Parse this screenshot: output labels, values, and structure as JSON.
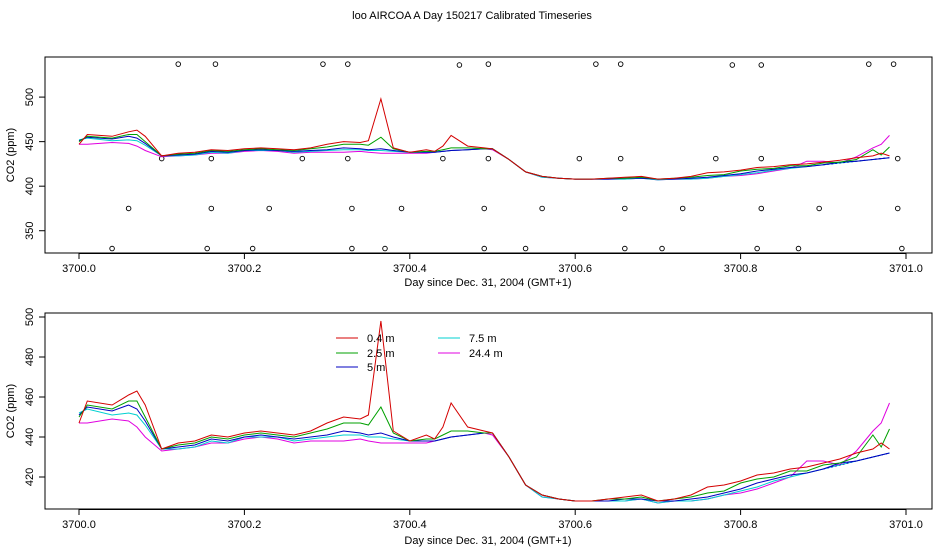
{
  "title": "loo AIRCOA A  Day 150217  Calibrated Timeseries",
  "colors": {
    "0.4 m": "#d40000",
    "2.5 m": "#00a000",
    "5 m": "#0000c0",
    "7.5 m": "#00d0d0",
    "24.4 m": "#e000e0"
  },
  "chart_data": [
    {
      "type": "line",
      "xlabel": "Day since Dec. 31, 2004 (GMT+1)",
      "ylabel": "CO2 (ppm)",
      "xlim": [
        3699.965,
        3701.025
      ],
      "ylim": [
        325,
        545
      ],
      "xticks": [
        3700.0,
        3700.2,
        3700.4,
        3700.6,
        3700.8,
        3701.0
      ],
      "xtick_labels": [
        "3700.0",
        "3700.2",
        "3700.4",
        "3700.6",
        "3700.8",
        "3701.0"
      ],
      "yticks": [
        350,
        400,
        450,
        500
      ],
      "ytick_labels": [
        "350",
        "400",
        "450",
        "500"
      ],
      "legend": "none",
      "grid": false,
      "flag_points": [
        [
          3700.04,
          330
        ],
        [
          3700.06,
          375
        ],
        [
          3700.1,
          431
        ],
        [
          3700.12,
          537
        ],
        [
          3700.155,
          330
        ],
        [
          3700.16,
          375
        ],
        [
          3700.16,
          431
        ],
        [
          3700.165,
          537
        ],
        [
          3700.21,
          330
        ],
        [
          3700.23,
          375
        ],
        [
          3700.27,
          431
        ],
        [
          3700.295,
          537
        ],
        [
          3700.325,
          537
        ],
        [
          3700.325,
          431
        ],
        [
          3700.33,
          375
        ],
        [
          3700.33,
          330
        ],
        [
          3700.37,
          330
        ],
        [
          3700.39,
          375
        ],
        [
          3700.44,
          431
        ],
        [
          3700.46,
          536
        ],
        [
          3700.49,
          330
        ],
        [
          3700.49,
          375
        ],
        [
          3700.495,
          431
        ],
        [
          3700.495,
          537
        ],
        [
          3700.54,
          330
        ],
        [
          3700.56,
          375
        ],
        [
          3700.605,
          431
        ],
        [
          3700.625,
          537
        ],
        [
          3700.655,
          431
        ],
        [
          3700.655,
          537
        ],
        [
          3700.66,
          375
        ],
        [
          3700.66,
          330
        ],
        [
          3700.705,
          330
        ],
        [
          3700.73,
          375
        ],
        [
          3700.77,
          431
        ],
        [
          3700.79,
          536
        ],
        [
          3700.82,
          330
        ],
        [
          3700.825,
          375
        ],
        [
          3700.825,
          431
        ],
        [
          3700.825,
          536
        ],
        [
          3700.87,
          330
        ],
        [
          3700.895,
          375
        ],
        [
          3700.955,
          537
        ],
        [
          3700.985,
          537
        ],
        [
          3700.99,
          431
        ],
        [
          3700.99,
          375
        ],
        [
          3700.995,
          330
        ]
      ],
      "series": [
        {
          "name": "0.4 m",
          "x": [
            3700.0,
            3700.01,
            3700.04,
            3700.06,
            3700.07,
            3700.08,
            3700.1,
            3700.12,
            3700.14,
            3700.16,
            3700.18,
            3700.2,
            3700.22,
            3700.24,
            3700.26,
            3700.28,
            3700.3,
            3700.32,
            3700.34,
            3700.35,
            3700.365,
            3700.38,
            3700.4,
            3700.42,
            3700.43,
            3700.44,
            3700.45,
            3700.47,
            3700.49,
            3700.5,
            3700.52,
            3700.54,
            3700.56,
            3700.58,
            3700.6,
            3700.62,
            3700.64,
            3700.66,
            3700.68,
            3700.7,
            3700.72,
            3700.74,
            3700.76,
            3700.78,
            3700.8,
            3700.82,
            3700.84,
            3700.86,
            3700.88,
            3700.9,
            3700.92,
            3700.94,
            3700.96,
            3700.97,
            3700.98
          ],
          "y": [
            447,
            458,
            456,
            461,
            463,
            456,
            434,
            437,
            438,
            441,
            440,
            442,
            443,
            442,
            441,
            443,
            447,
            450,
            449,
            451,
            498,
            443,
            438,
            441,
            439,
            445,
            457,
            445,
            443,
            442,
            430,
            416,
            411,
            409,
            408,
            408,
            409,
            410,
            411,
            408,
            409,
            411,
            415,
            416,
            418,
            421,
            422,
            424,
            425,
            427,
            429,
            432,
            434,
            437,
            434
          ]
        },
        {
          "name": "2.5 m",
          "x": [
            3700.0,
            3700.01,
            3700.04,
            3700.06,
            3700.07,
            3700.08,
            3700.1,
            3700.12,
            3700.14,
            3700.16,
            3700.18,
            3700.2,
            3700.22,
            3700.24,
            3700.26,
            3700.28,
            3700.3,
            3700.32,
            3700.34,
            3700.35,
            3700.365,
            3700.38,
            3700.4,
            3700.42,
            3700.43,
            3700.44,
            3700.45,
            3700.47,
            3700.49,
            3700.5,
            3700.52,
            3700.54,
            3700.56,
            3700.58,
            3700.6,
            3700.62,
            3700.64,
            3700.66,
            3700.68,
            3700.7,
            3700.72,
            3700.74,
            3700.76,
            3700.78,
            3700.8,
            3700.82,
            3700.84,
            3700.86,
            3700.88,
            3700.9,
            3700.92,
            3700.94,
            3700.96,
            3700.97,
            3700.98
          ],
          "y": [
            450,
            456,
            454,
            458,
            458,
            450,
            434,
            436,
            437,
            440,
            439,
            441,
            442,
            441,
            440,
            442,
            444,
            447,
            447,
            446,
            455,
            442,
            438,
            439,
            439,
            441,
            443,
            443,
            442,
            442,
            430,
            416,
            411,
            409,
            408,
            408,
            409,
            409,
            410,
            408,
            409,
            410,
            412,
            413,
            417,
            419,
            420,
            423,
            423,
            426,
            427,
            430,
            441,
            435,
            444
          ]
        },
        {
          "name": "5 m",
          "x": [
            3700.0,
            3700.01,
            3700.04,
            3700.06,
            3700.07,
            3700.08,
            3700.1,
            3700.12,
            3700.14,
            3700.16,
            3700.18,
            3700.2,
            3700.22,
            3700.24,
            3700.26,
            3700.28,
            3700.3,
            3700.32,
            3700.34,
            3700.35,
            3700.365,
            3700.38,
            3700.4,
            3700.42,
            3700.43,
            3700.44,
            3700.45,
            3700.47,
            3700.49,
            3700.5,
            3700.52,
            3700.54,
            3700.56,
            3700.58,
            3700.6,
            3700.62,
            3700.64,
            3700.66,
            3700.68,
            3700.7,
            3700.72,
            3700.74,
            3700.76,
            3700.78,
            3700.8,
            3700.82,
            3700.84,
            3700.86,
            3700.88,
            3700.9,
            3700.92,
            3700.94,
            3700.96,
            3700.97,
            3700.98
          ],
          "y": [
            451,
            455,
            453,
            456,
            454,
            448,
            434,
            435,
            436,
            439,
            438,
            440,
            441,
            440,
            439,
            440,
            441,
            443,
            442,
            441,
            442,
            440,
            438,
            438,
            438,
            439,
            440,
            441,
            442,
            442,
            430,
            416,
            411,
            409,
            408,
            408,
            408,
            409,
            409,
            408,
            408,
            409,
            410,
            412,
            414,
            417,
            419,
            421,
            422,
            424,
            427,
            428,
            430,
            431,
            432
          ]
        },
        {
          "name": "7.5 m",
          "x": [
            3700.0,
            3700.01,
            3700.04,
            3700.06,
            3700.07,
            3700.08,
            3700.1,
            3700.12,
            3700.14,
            3700.16,
            3700.18,
            3700.2,
            3700.22,
            3700.24,
            3700.26,
            3700.28,
            3700.3,
            3700.32,
            3700.34,
            3700.35,
            3700.365,
            3700.38,
            3700.4,
            3700.42,
            3700.43,
            3700.44,
            3700.45,
            3700.47,
            3700.49,
            3700.5,
            3700.52,
            3700.54,
            3700.56,
            3700.58,
            3700.6,
            3700.62,
            3700.64,
            3700.66,
            3700.68,
            3700.7,
            3700.72,
            3700.74,
            3700.76,
            3700.78,
            3700.8,
            3700.82,
            3700.84,
            3700.86,
            3700.88,
            3700.9,
            3700.92,
            3700.94,
            3700.96,
            3700.97,
            3700.98
          ],
          "y": [
            452,
            454,
            451,
            452,
            451,
            446,
            434,
            434,
            435,
            438,
            437,
            440,
            440,
            440,
            438,
            439,
            440,
            441,
            441,
            440,
            440,
            439,
            438,
            438,
            438,
            439,
            440,
            441,
            442,
            442,
            430,
            416,
            410,
            409,
            408,
            408,
            408,
            408,
            409,
            407,
            408,
            408,
            409,
            411,
            413,
            415,
            418,
            420,
            422,
            424,
            426,
            428,
            430,
            431,
            432
          ]
        },
        {
          "name": "24.4 m",
          "x": [
            3700.0,
            3700.01,
            3700.04,
            3700.06,
            3700.07,
            3700.08,
            3700.1,
            3700.12,
            3700.14,
            3700.16,
            3700.18,
            3700.2,
            3700.22,
            3700.24,
            3700.26,
            3700.28,
            3700.3,
            3700.32,
            3700.34,
            3700.35,
            3700.365,
            3700.38,
            3700.4,
            3700.42,
            3700.43,
            3700.44,
            3700.45,
            3700.47,
            3700.49,
            3700.5,
            3700.52,
            3700.54,
            3700.56,
            3700.58,
            3700.6,
            3700.62,
            3700.64,
            3700.66,
            3700.68,
            3700.7,
            3700.72,
            3700.74,
            3700.76,
            3700.78,
            3700.8,
            3700.82,
            3700.84,
            3700.86,
            3700.88,
            3700.9,
            3700.92,
            3700.94,
            3700.96,
            3700.97,
            3700.98
          ],
          "y": [
            447,
            447,
            449,
            448,
            445,
            440,
            433,
            434,
            435,
            437,
            437,
            439,
            440,
            439,
            437,
            438,
            438,
            438,
            439,
            438,
            437,
            437,
            437,
            437,
            438,
            439,
            440,
            441,
            442,
            441,
            430,
            416,
            410,
            409,
            408,
            408,
            408,
            408,
            409,
            407,
            408,
            408,
            409,
            411,
            412,
            414,
            417,
            420,
            428,
            428,
            426,
            433,
            443,
            447,
            457
          ]
        }
      ]
    },
    {
      "type": "line",
      "xlabel": "Day since Dec. 31, 2004 (GMT+1)",
      "ylabel": "CO2 (ppm)",
      "xlim": [
        3699.965,
        3701.025
      ],
      "ylim": [
        404,
        502
      ],
      "xticks": [
        3700.0,
        3700.2,
        3700.4,
        3700.6,
        3700.8,
        3701.0
      ],
      "xtick_labels": [
        "3700.0",
        "3700.2",
        "3700.4",
        "3700.6",
        "3700.8",
        "3701.0"
      ],
      "yticks": [
        420,
        440,
        460,
        480,
        500
      ],
      "ytick_labels": [
        "420",
        "440",
        "460",
        "480",
        "500"
      ],
      "legend": "top-center",
      "legend_entries": [
        "0.4 m",
        "2.5 m",
        "5 m",
        "7.5 m",
        "24.4 m"
      ],
      "grid": false,
      "series_ref": "same series as chart_data[0]"
    }
  ]
}
